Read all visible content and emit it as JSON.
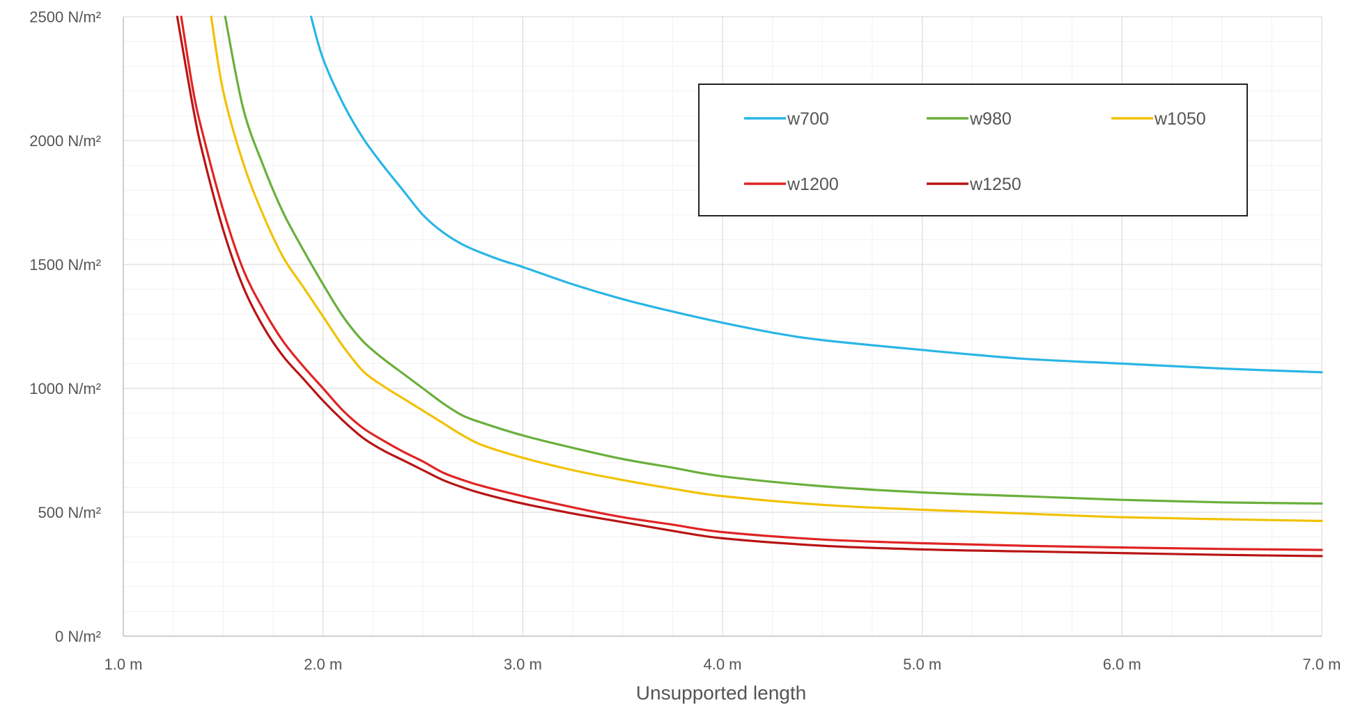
{
  "chart_data": {
    "type": "line",
    "title": "",
    "xlabel": "Unsupported length",
    "ylabel": "",
    "xlim": [
      1.0,
      7.0
    ],
    "ylim": [
      0,
      2500
    ],
    "x_ticks": [
      {
        "value": 1.0,
        "label": "1.0 m"
      },
      {
        "value": 2.0,
        "label": "2.0 m"
      },
      {
        "value": 3.0,
        "label": "3.0 m"
      },
      {
        "value": 4.0,
        "label": "4.0 m"
      },
      {
        "value": 5.0,
        "label": "5.0 m"
      },
      {
        "value": 6.0,
        "label": "6.0 m"
      },
      {
        "value": 7.0,
        "label": "7.0 m"
      }
    ],
    "y_ticks": [
      {
        "value": 0,
        "label": "0 N/m²"
      },
      {
        "value": 500,
        "label": "500 N/m²"
      },
      {
        "value": 1000,
        "label": "1000 N/m²"
      },
      {
        "value": 1500,
        "label": "1500 N/m²"
      },
      {
        "value": 2000,
        "label": "2000 N/m²"
      },
      {
        "value": 2500,
        "label": "2500 N/m²"
      }
    ],
    "grid": true,
    "minor_grid": true,
    "legend_position": "top-right",
    "series": [
      {
        "name": "w700",
        "color": "#29B6E6",
        "x": [
          1.94,
          2.0,
          2.1,
          2.2,
          2.3,
          2.4,
          2.5,
          2.6,
          2.7,
          2.8,
          2.9,
          3.0,
          3.25,
          3.5,
          3.75,
          4.0,
          4.25,
          4.5,
          5.0,
          5.5,
          6.0,
          6.5,
          7.0
        ],
        "y": [
          2500,
          2330,
          2150,
          2010,
          1900,
          1800,
          1700,
          1630,
          1580,
          1545,
          1515,
          1490,
          1420,
          1360,
          1310,
          1265,
          1225,
          1195,
          1155,
          1120,
          1100,
          1080,
          1065
        ]
      },
      {
        "name": "w980",
        "color": "#6AAF3C",
        "x": [
          1.51,
          1.6,
          1.7,
          1.8,
          1.9,
          2.0,
          2.1,
          2.2,
          2.3,
          2.4,
          2.5,
          2.6,
          2.7,
          2.8,
          3.0,
          3.25,
          3.5,
          3.75,
          4.0,
          4.5,
          5.0,
          5.5,
          6.0,
          6.5,
          7.0
        ],
        "y": [
          2500,
          2130,
          1900,
          1710,
          1560,
          1420,
          1290,
          1190,
          1120,
          1060,
          1000,
          940,
          890,
          860,
          810,
          760,
          715,
          680,
          645,
          605,
          580,
          565,
          550,
          540,
          535
        ]
      },
      {
        "name": "w1050",
        "color": "#F2C100",
        "x": [
          1.44,
          1.5,
          1.6,
          1.7,
          1.8,
          1.9,
          2.0,
          2.1,
          2.2,
          2.3,
          2.4,
          2.5,
          2.6,
          2.7,
          2.8,
          3.0,
          3.25,
          3.5,
          3.75,
          4.0,
          4.5,
          5.0,
          5.5,
          6.0,
          6.5,
          7.0
        ],
        "y": [
          2500,
          2200,
          1910,
          1700,
          1530,
          1410,
          1290,
          1170,
          1070,
          1010,
          960,
          910,
          860,
          810,
          770,
          720,
          670,
          630,
          595,
          565,
          530,
          510,
          495,
          480,
          472,
          465
        ]
      },
      {
        "name": "w1200",
        "color": "#E02424",
        "x": [
          1.29,
          1.35,
          1.4,
          1.5,
          1.6,
          1.7,
          1.8,
          1.9,
          2.0,
          2.1,
          2.2,
          2.3,
          2.4,
          2.5,
          2.6,
          2.7,
          2.8,
          3.0,
          3.25,
          3.5,
          3.75,
          4.0,
          4.5,
          5.0,
          5.5,
          6.0,
          6.5,
          7.0
        ],
        "y": [
          2500,
          2200,
          2020,
          1720,
          1480,
          1320,
          1190,
          1090,
          1000,
          910,
          840,
          790,
          745,
          705,
          660,
          630,
          605,
          565,
          520,
          480,
          450,
          420,
          390,
          375,
          365,
          358,
          352,
          348
        ]
      },
      {
        "name": "w1250",
        "color": "#B81414",
        "x": [
          1.27,
          1.35,
          1.4,
          1.5,
          1.6,
          1.7,
          1.8,
          1.9,
          2.0,
          2.1,
          2.2,
          2.3,
          2.4,
          2.5,
          2.6,
          2.7,
          2.8,
          3.0,
          3.25,
          3.5,
          3.75,
          4.0,
          4.5,
          5.0,
          5.5,
          6.0,
          6.5,
          7.0
        ],
        "y": [
          2500,
          2130,
          1940,
          1640,
          1410,
          1250,
          1130,
          1040,
          950,
          870,
          800,
          750,
          710,
          670,
          630,
          600,
          575,
          535,
          495,
          460,
          425,
          395,
          365,
          350,
          342,
          335,
          328,
          323
        ]
      }
    ]
  }
}
